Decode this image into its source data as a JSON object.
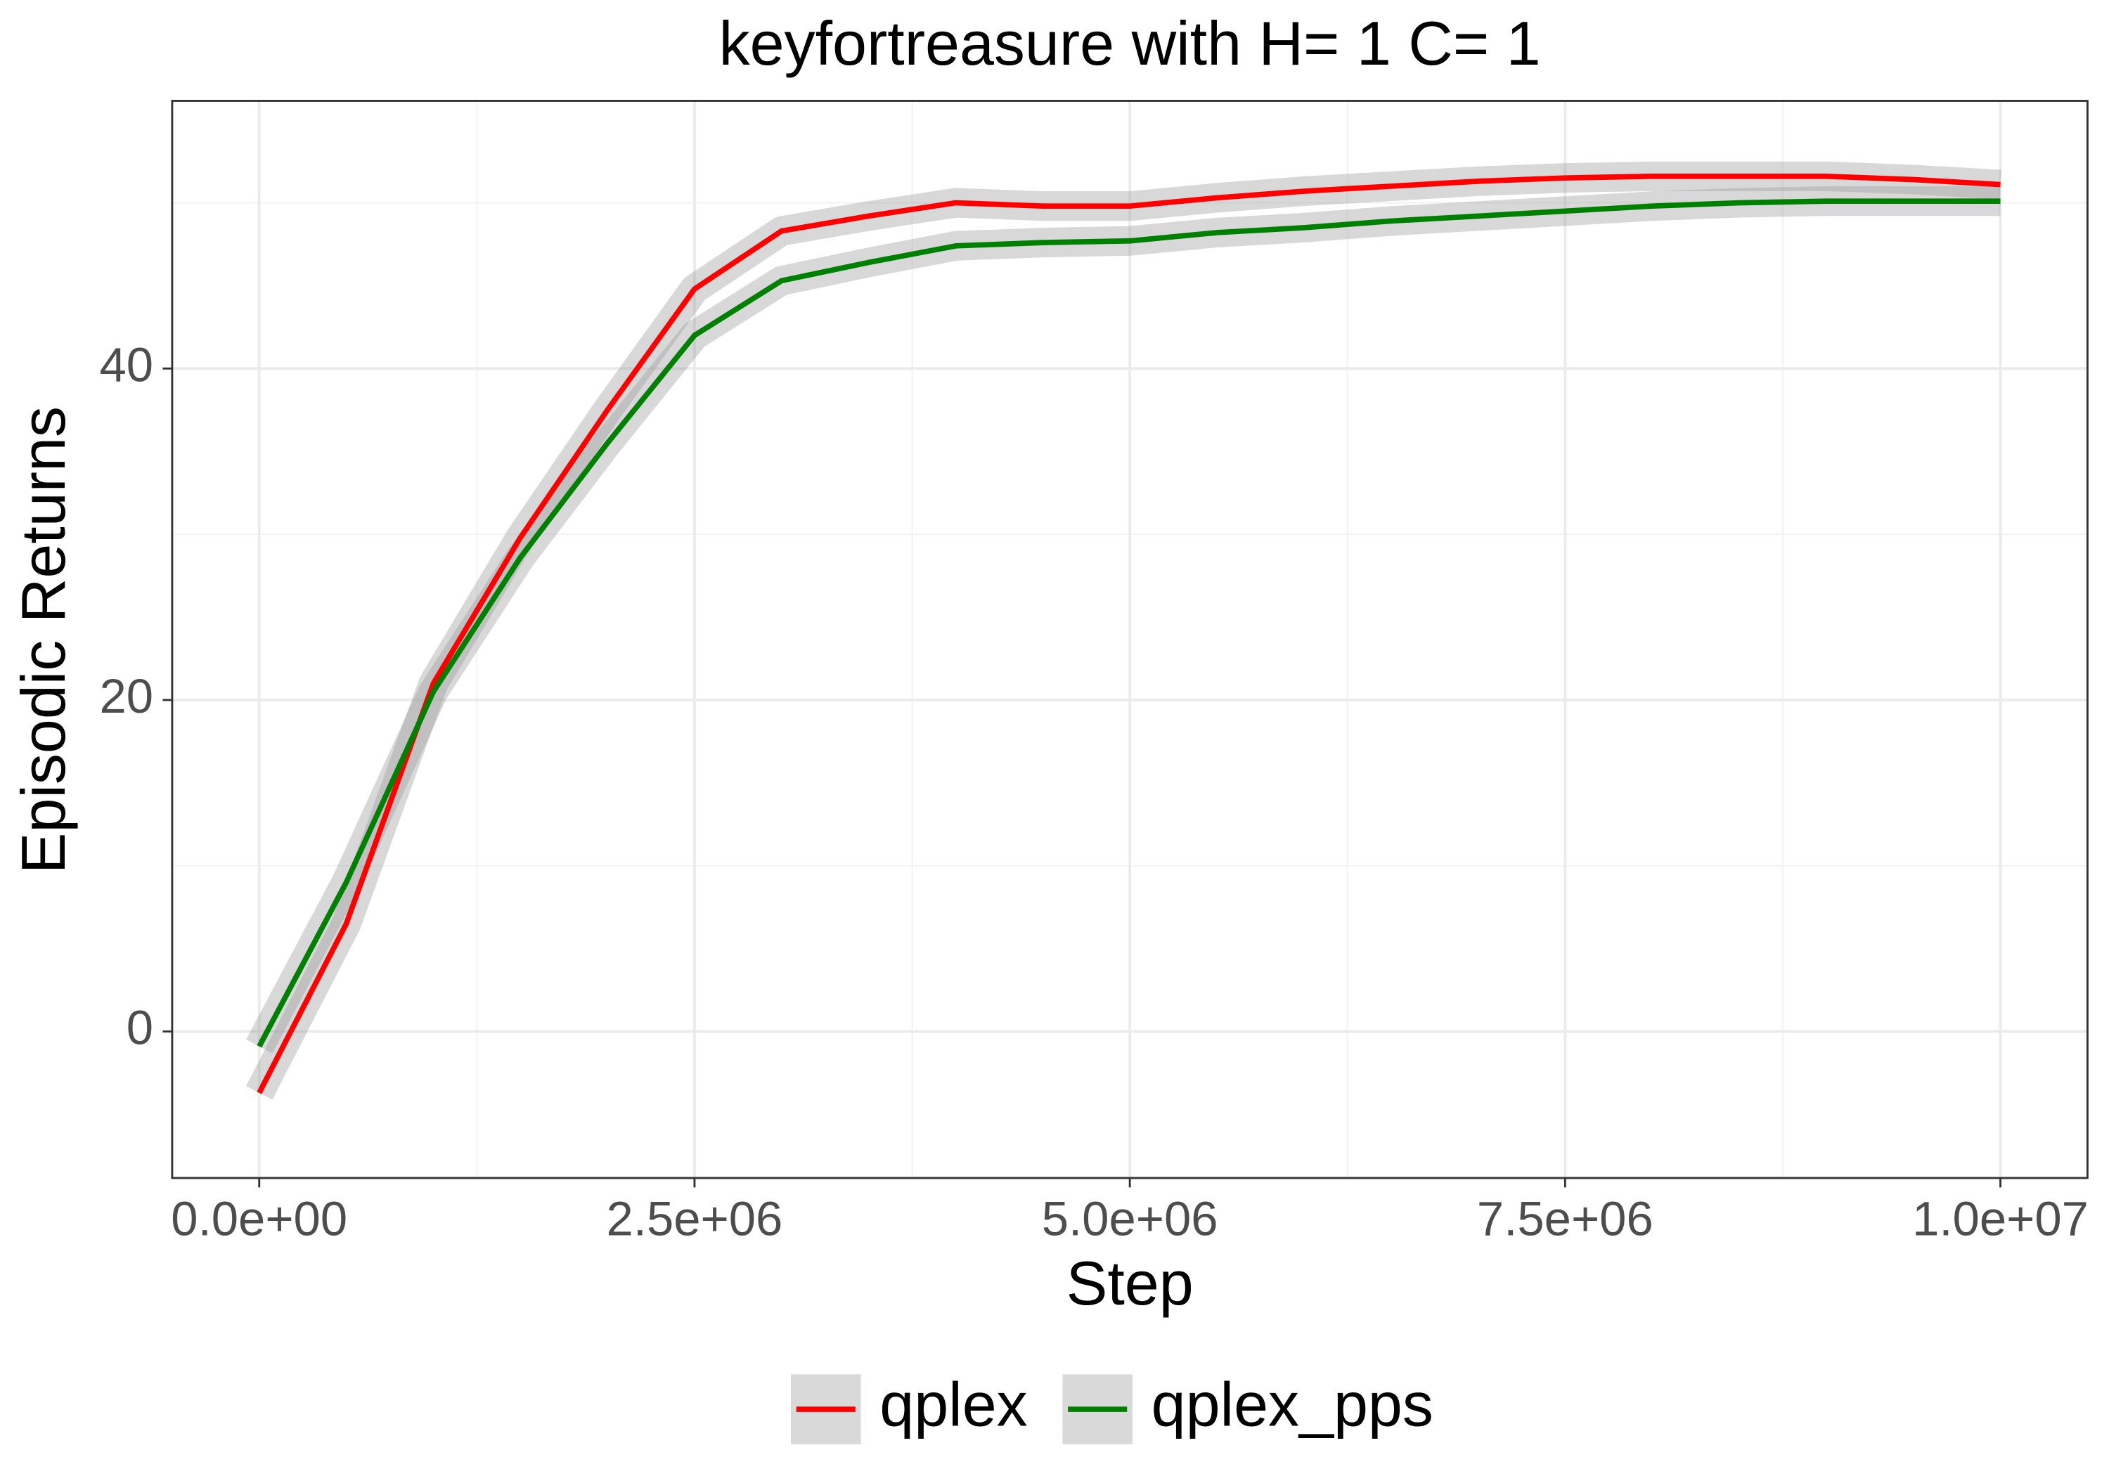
{
  "chart_data": {
    "type": "line",
    "title": "keyfortreasure  with H= 1 C= 1",
    "x_label": "Step",
    "y_label": "Episodic Returns",
    "x": [
      0,
      500000,
      1000000,
      1500000,
      2000000,
      2500000,
      3000000,
      3500000,
      4000000,
      4500000,
      5000000,
      5500000,
      6000000,
      6500000,
      7000000,
      7500000,
      8000000,
      8500000,
      9000000,
      9500000,
      10000000
    ],
    "series": [
      {
        "name": "qplex",
        "color": "#ff0000",
        "values": [
          -3.7,
          6.5,
          21,
          29.8,
          37.5,
          44.8,
          48.3,
          49.2,
          50,
          49.8,
          49.8,
          50.3,
          50.7,
          51,
          51.3,
          51.5,
          51.6,
          51.6,
          51.6,
          51.4,
          51.1
        ]
      },
      {
        "name": "qplex_pps",
        "color": "#008000",
        "values": [
          -0.9,
          9,
          20.5,
          28.6,
          35.5,
          42,
          45.3,
          46.4,
          47.4,
          47.6,
          47.7,
          48.2,
          48.5,
          48.9,
          49.2,
          49.5,
          49.8,
          50,
          50.1,
          50.1,
          50.1
        ]
      }
    ],
    "xlim": [
      -500000,
      10500000
    ],
    "xticks": [
      {
        "value": 0,
        "label": "0.0e+00"
      },
      {
        "value": 2500000,
        "label": "2.5e+06"
      },
      {
        "value": 5000000,
        "label": "5.0e+06"
      },
      {
        "value": 7500000,
        "label": "7.5e+06"
      },
      {
        "value": 10000000,
        "label": "1.0e+07"
      }
    ],
    "ylim": [
      -8.84,
      56.15
    ],
    "yticks": [
      0,
      20,
      40
    ],
    "grid": true,
    "legend": "bottom"
  }
}
